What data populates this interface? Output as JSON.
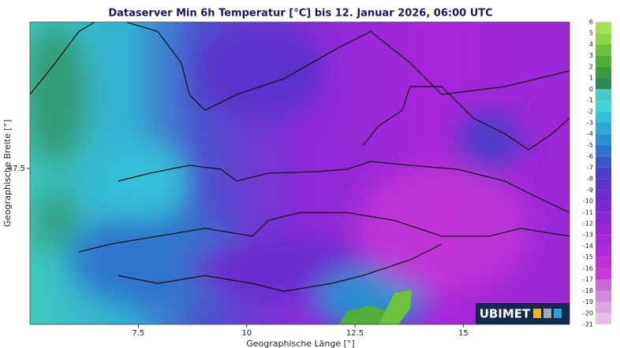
{
  "title": "Dataserver Min 6h Temperatur [°C] bis 12. Januar 2026, 06:00 UTC",
  "map": {
    "xlim": [
      5.0,
      17.45
    ],
    "ylim": [
      45.05,
      49.8
    ],
    "x_axis": {
      "label": "Geographische Länge [°]",
      "ticks": [
        7.5,
        10,
        12.5,
        15
      ]
    },
    "y_axis": {
      "label": "Geographische Breite [°]",
      "ticks": [
        47.5
      ]
    }
  },
  "colorbar": {
    "levels": [
      6,
      5,
      4,
      3,
      2,
      1,
      0,
      -1,
      -2,
      -3,
      -4,
      -5,
      -6,
      -7,
      -8,
      -9,
      -10,
      -11,
      -12,
      -13,
      -14,
      -15,
      -16,
      -17,
      -18,
      -19,
      -20,
      -21
    ],
    "colors": [
      "#a6e05a",
      "#8cd44a",
      "#6cc23c",
      "#4fae3a",
      "#3a9a3e",
      "#2f8a52",
      "#4bc9c9",
      "#3fd6d6",
      "#36c0d8",
      "#2fa8d6",
      "#2890d0",
      "#2f74cc",
      "#3a58c8",
      "#4a3ec8",
      "#5a32cc",
      "#6a2cd0",
      "#7a28d4",
      "#8a26d6",
      "#9a26d8",
      "#a628d8",
      "#b22ad8",
      "#bc30d6",
      "#c63ad6",
      "#cc66d8",
      "#d488dc",
      "#dca6e2",
      "#e4c0e8"
    ]
  },
  "logo": "UBIMET"
}
